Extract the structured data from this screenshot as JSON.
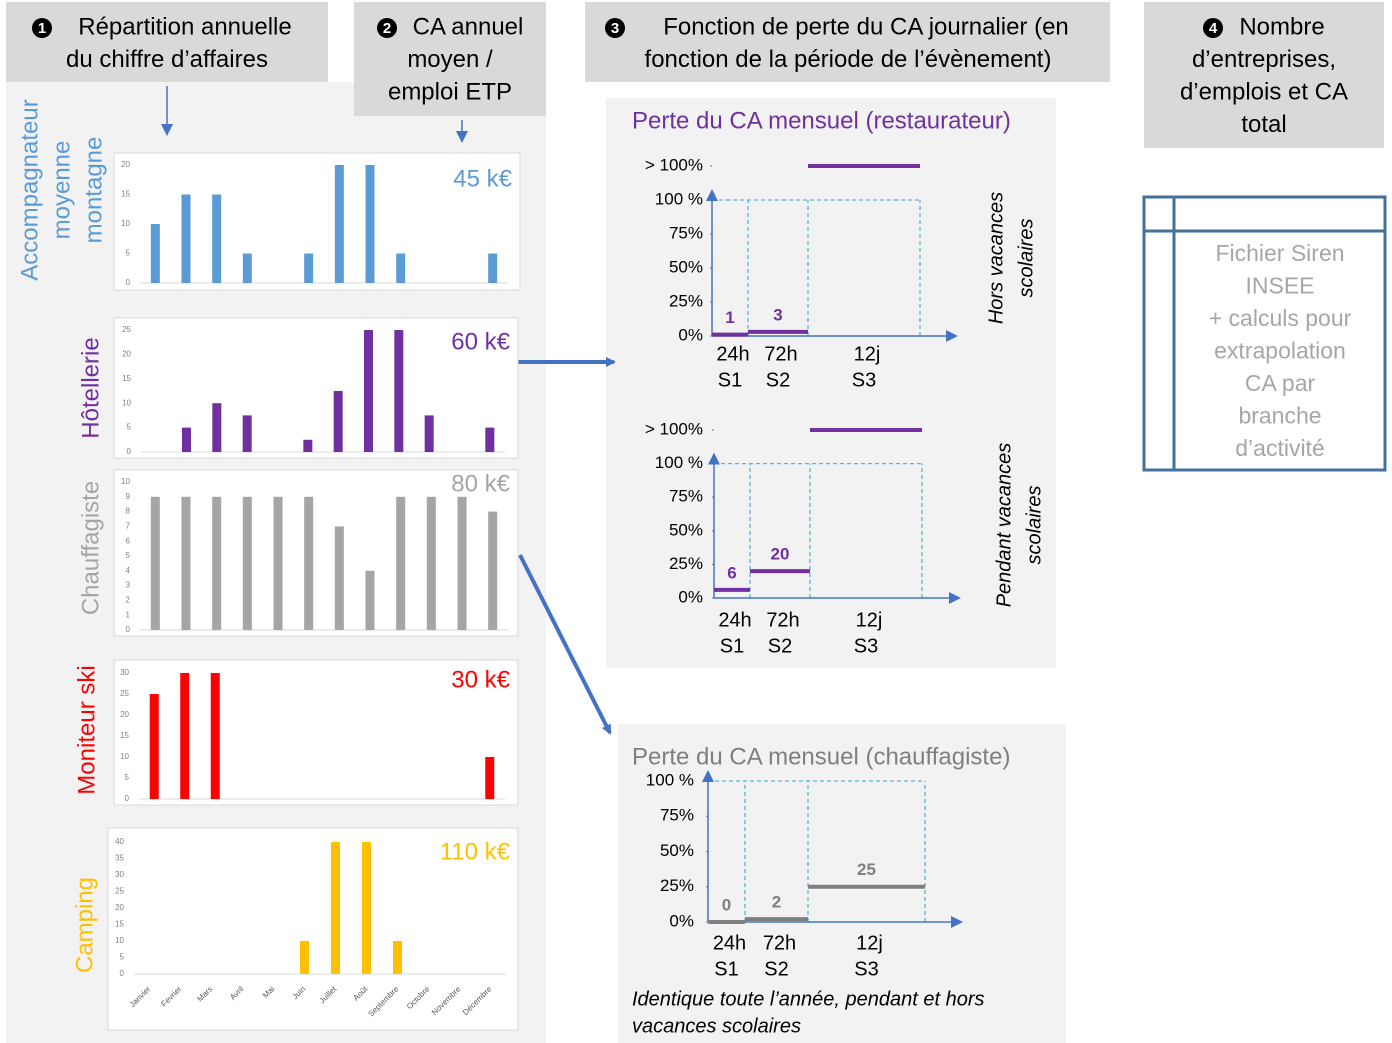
{
  "headers": [
    {
      "number": "1",
      "lines": [
        "Répartition annuelle",
        "du chiffre d’affaires"
      ]
    },
    {
      "number": "2",
      "lines": [
        "CA annuel",
        "moyen /",
        "emploi ETP"
      ]
    },
    {
      "number": "3",
      "lines": [
        "Fonction de perte du CA journalier (en",
        "fonction de la période de l’évènement)"
      ]
    },
    {
      "number": "4",
      "lines": [
        "Nombre",
        "d’entreprises,",
        "d’emplois et CA",
        "total"
      ]
    }
  ],
  "chart_data": [
    {
      "type": "bar",
      "title_lines": [
        "Accompagnateur",
        "moyenne",
        "montagne"
      ],
      "ca_label": "45 k€",
      "color": "#5b9bd5",
      "values": [
        10,
        15,
        15,
        5,
        0,
        5,
        20,
        20,
        5,
        0,
        0,
        5
      ],
      "ylim": [
        0,
        20
      ],
      "yticks": [
        0,
        5,
        10,
        15,
        20
      ]
    },
    {
      "type": "bar",
      "title_lines": [
        "Hôtellerie"
      ],
      "ca_label": "60 k€",
      "color": "#7030a0",
      "values": [
        0,
        5,
        10,
        7.5,
        0,
        2.5,
        12.5,
        25,
        25,
        7.5,
        0,
        5
      ],
      "ylim": [
        0,
        25
      ],
      "yticks": [
        0,
        5,
        10,
        15,
        20,
        25
      ]
    },
    {
      "type": "bar",
      "title_lines": [
        "Chauffagiste"
      ],
      "ca_label": "80 k€",
      "color": "#a5a5a5",
      "values": [
        9,
        9,
        9,
        9,
        9,
        9,
        7,
        4,
        9,
        9,
        9,
        8
      ],
      "ylim": [
        0,
        10
      ],
      "yticks": [
        0,
        1,
        2,
        3,
        4,
        5,
        6,
        7,
        8,
        9,
        10
      ]
    },
    {
      "type": "bar",
      "title_lines": [
        "Moniteur ski"
      ],
      "ca_label": "30 k€",
      "color": "#ff0000",
      "values": [
        25,
        30,
        30,
        0,
        0,
        0,
        0,
        0,
        0,
        0,
        0,
        10
      ],
      "ylim": [
        0,
        30
      ],
      "yticks": [
        0,
        5,
        10,
        15,
        20,
        25,
        30
      ]
    },
    {
      "type": "bar",
      "title_lines": [
        "Camping"
      ],
      "ca_label": "110 k€",
      "color": "#ffc000",
      "categories": [
        "Janvier",
        "Fevrier",
        "Mars",
        "Avril",
        "Mai",
        "Juin",
        "Juillet",
        "Août",
        "Septembre",
        "Octobre",
        "Novembre",
        "Décembre"
      ],
      "values": [
        0,
        0,
        0,
        0,
        0,
        10,
        40,
        40,
        10,
        0,
        0,
        0
      ],
      "ylim": [
        0,
        40
      ],
      "yticks": [
        0,
        5,
        10,
        15,
        20,
        25,
        30,
        35,
        40
      ]
    },
    {
      "type": "step",
      "title": "Perte du CA mensuel (restaurateur)",
      "side_label_lines": [
        "Hors vacances",
        "scolaires"
      ],
      "color": "#7030a0",
      "categories": [
        "24h",
        "72h",
        "12j"
      ],
      "subcategories": [
        "S1",
        "S2",
        "S3"
      ],
      "values": [
        1,
        3,
        125
      ],
      "value_labels": [
        "1",
        "3",
        null
      ],
      "ylim": [
        0,
        125
      ],
      "yticks": [
        {
          "value": 0,
          "label": "0%"
        },
        {
          "value": 25,
          "label": "25%"
        },
        {
          "value": 50,
          "label": "50%"
        },
        {
          "value": 75,
          "label": "75%"
        },
        {
          "value": 100,
          "label": "100 %"
        },
        {
          "value": 125,
          "label": "> 100%"
        }
      ]
    },
    {
      "type": "step",
      "side_label_lines": [
        "Pendant vacances",
        "scolaires"
      ],
      "color": "#7030a0",
      "categories": [
        "24h",
        "72h",
        "12j"
      ],
      "subcategories": [
        "S1",
        "S2",
        "S3"
      ],
      "values": [
        6,
        20,
        125
      ],
      "value_labels": [
        "6",
        "20",
        null
      ],
      "ylim": [
        0,
        125
      ],
      "yticks": [
        {
          "value": 0,
          "label": "0%"
        },
        {
          "value": 25,
          "label": "25%"
        },
        {
          "value": 50,
          "label": "50%"
        },
        {
          "value": 75,
          "label": "75%"
        },
        {
          "value": 100,
          "label": "100 %"
        },
        {
          "value": 125,
          "label": "> 100%"
        }
      ]
    },
    {
      "type": "step",
      "title": "Perte du CA mensuel (chauffagiste)",
      "note_lines": [
        "Identique toute l’année, pendant et hors",
        "vacances scolaires"
      ],
      "color": "#7f7f7f",
      "categories": [
        "24h",
        "72h",
        "12j"
      ],
      "subcategories": [
        "S1",
        "S2",
        "S3"
      ],
      "values": [
        0,
        2,
        25
      ],
      "ylim": [
        0,
        100
      ],
      "yticks": [
        {
          "value": 0,
          "label": "0%"
        },
        {
          "value": 25,
          "label": "25%"
        },
        {
          "value": 50,
          "label": "50%"
        },
        {
          "value": 75,
          "label": "75%"
        },
        {
          "value": 100,
          "label": "100 %"
        }
      ]
    }
  ],
  "siren_box": {
    "lines": [
      "Fichier Siren",
      "INSEE",
      "+ calculs pour",
      "extrapolation",
      "CA par",
      "branche",
      "d’activité"
    ]
  }
}
